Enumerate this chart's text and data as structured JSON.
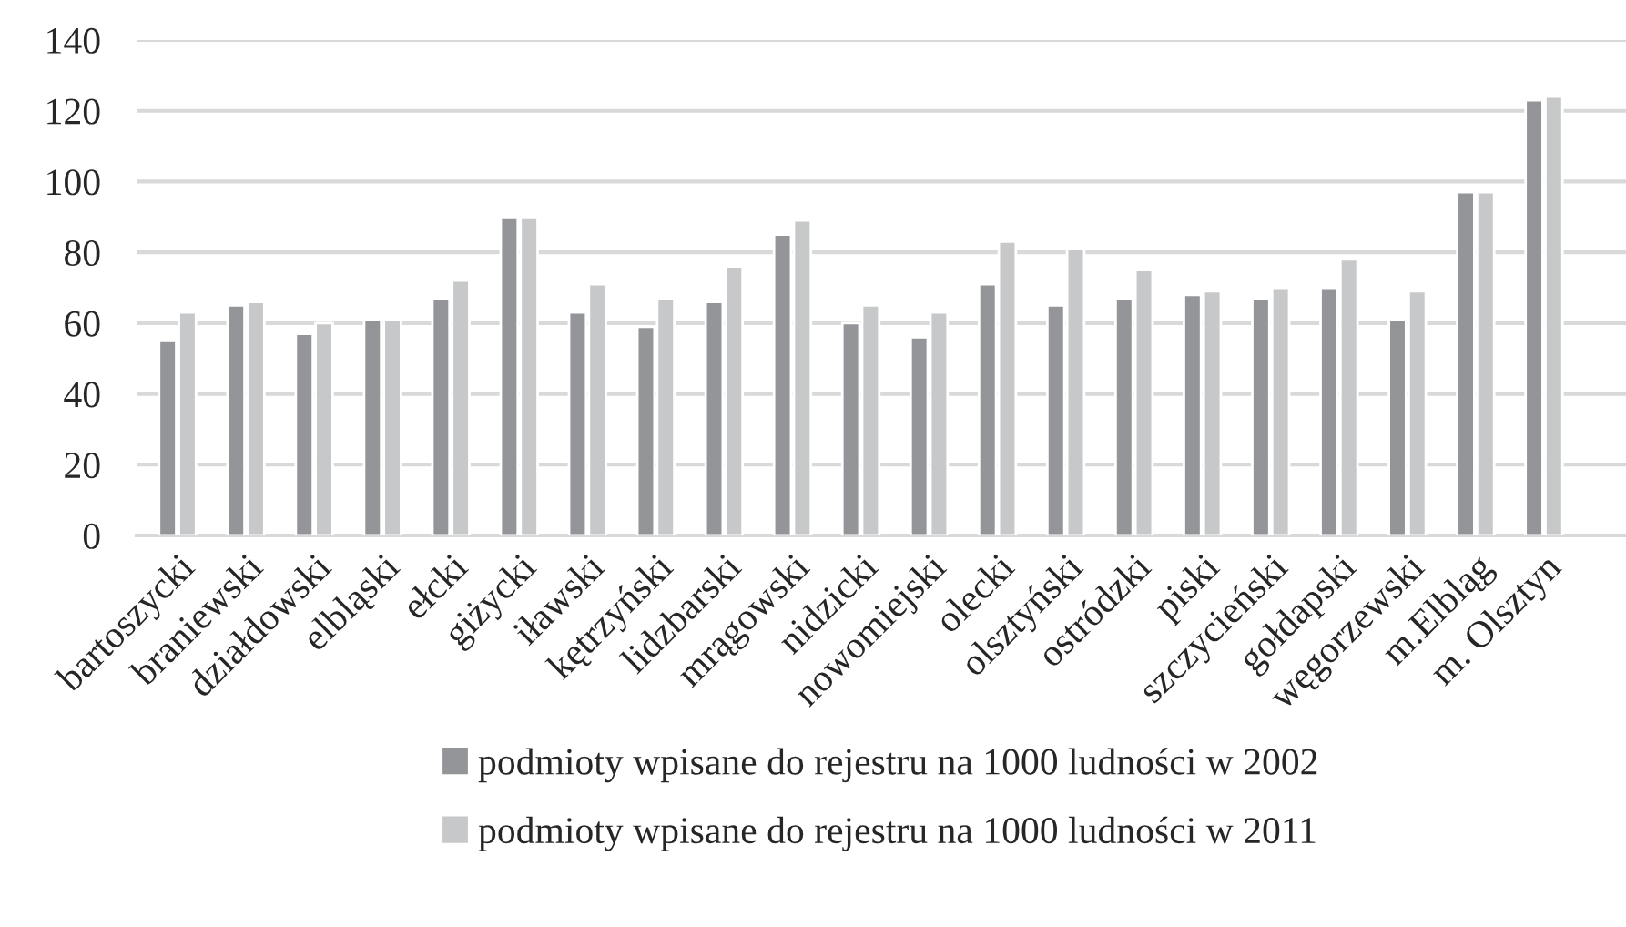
{
  "chart_data": {
    "type": "bar",
    "categories": [
      "bartoszycki",
      "braniewski",
      "działdowski",
      "elbląski",
      "ełcki",
      "giżycki",
      "iławski",
      "kętrzyński",
      "lidzbarski",
      "mrągowski",
      "nidzicki",
      "nowomiejski",
      "olecki",
      "olsztyński",
      "ostródzki",
      "piski",
      "szczycieński",
      "gołdapski",
      "węgorzewski",
      "m.Elbląg",
      "m. Olsztyn"
    ],
    "series": [
      {
        "name": "podmioty wpisane do rejestru na 1000 ludności w 2002",
        "color": "#939598",
        "values": [
          55,
          65,
          57,
          61,
          67,
          90,
          63,
          59,
          66,
          85,
          60,
          56,
          71,
          65,
          67,
          68,
          67,
          70,
          61,
          97,
          123
        ]
      },
      {
        "name": "podmioty wpisane do rejestru na 1000 ludności w 2011",
        "color": "#c7c8ca",
        "values": [
          63,
          66,
          60,
          61,
          72,
          90,
          71,
          67,
          76,
          89,
          65,
          63,
          83,
          81,
          75,
          69,
          70,
          78,
          69,
          97,
          124
        ]
      }
    ],
    "ylim": [
      0,
      140
    ],
    "yticks": [
      0,
      20,
      40,
      60,
      80,
      100,
      120,
      140
    ],
    "grid": "y",
    "legend": "bottom"
  }
}
